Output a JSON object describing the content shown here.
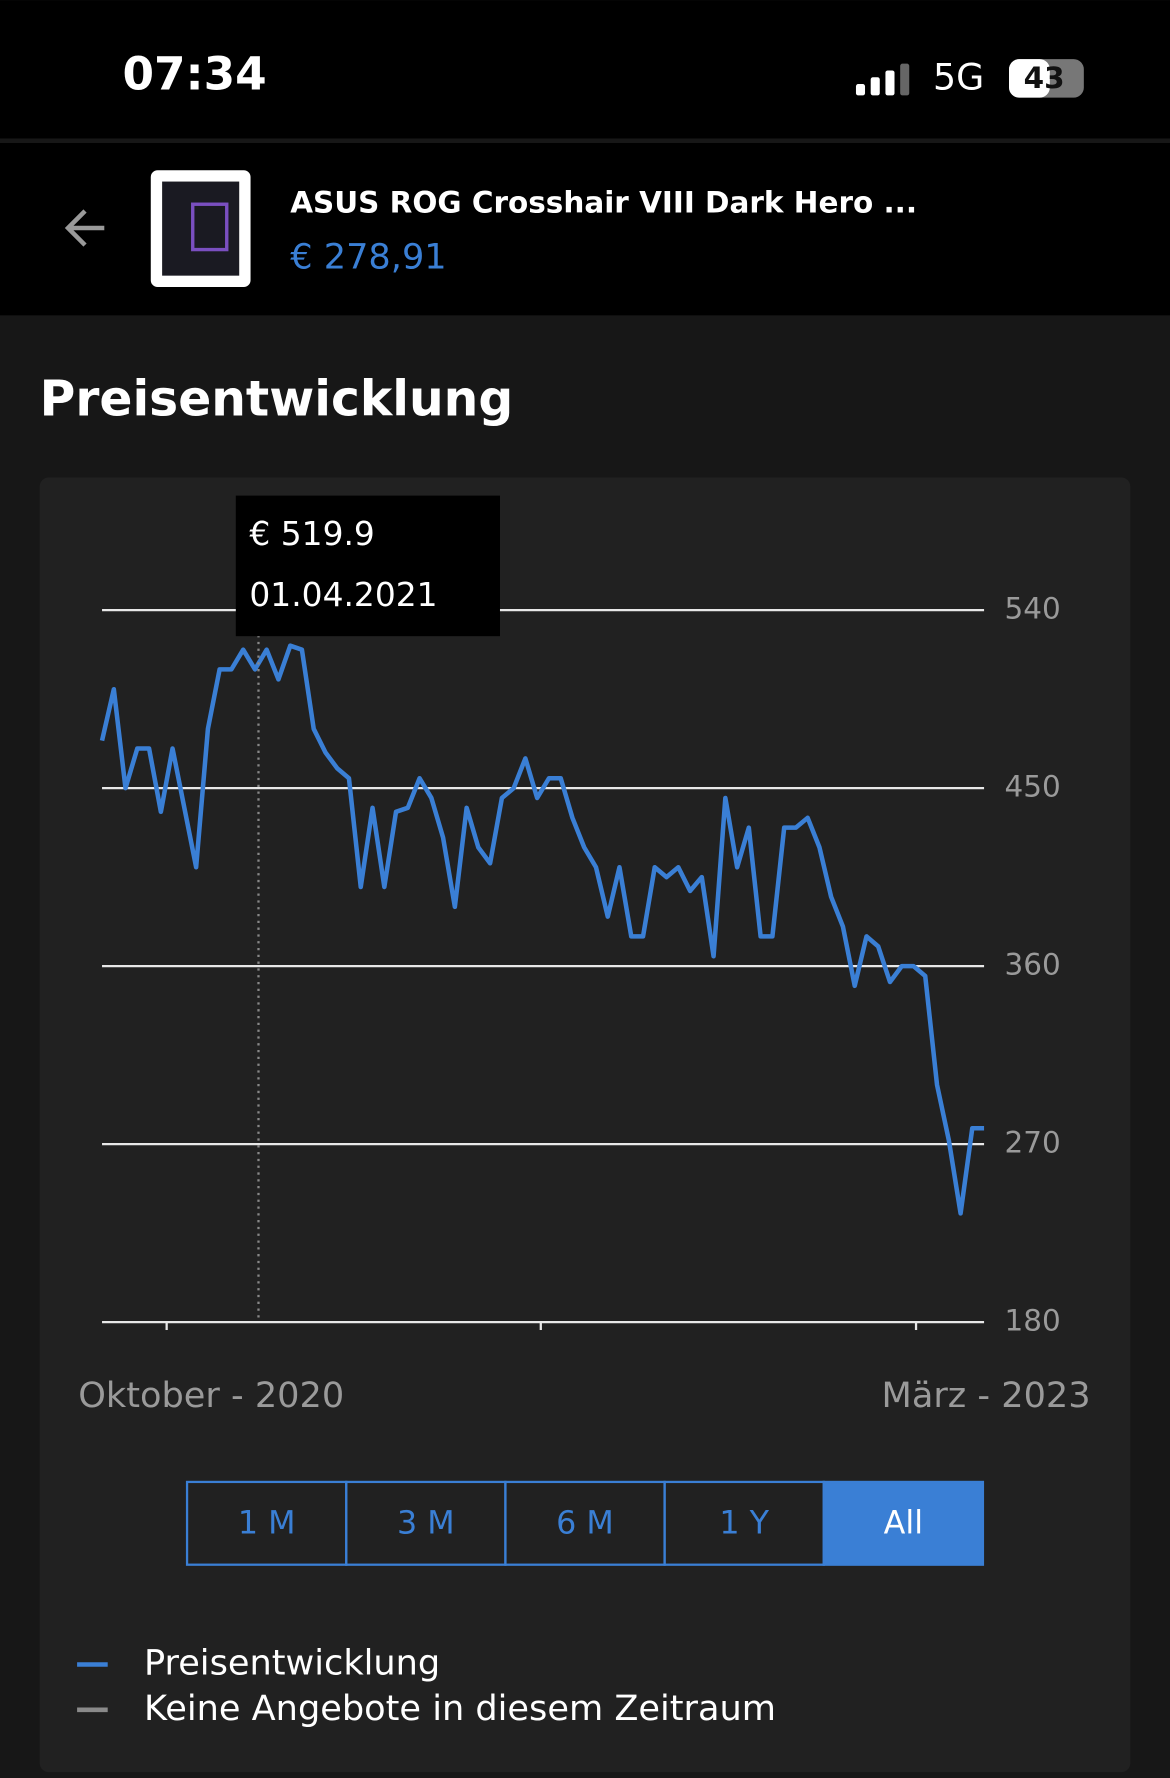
{
  "status_bar": {
    "time": "07:34",
    "network": "5G",
    "battery": "43"
  },
  "header": {
    "title": "ASUS ROG Crosshair VIII Dark Hero ...",
    "price": "€ 278,91"
  },
  "section_title": "Preisentwicklung",
  "chart_data": {
    "type": "line",
    "x_labels": [
      "Oktober - 2020",
      "März - 2023"
    ],
    "series": [
      {
        "name": "Preisentwicklung",
        "color": "#3a7fd5",
        "values": [
          474,
          500,
          450,
          470,
          470,
          438,
          470,
          440,
          410,
          480,
          510,
          510,
          520,
          510,
          520,
          505,
          522,
          520,
          480,
          468,
          460,
          455,
          400,
          440,
          400,
          438,
          440,
          455,
          445,
          425,
          390,
          440,
          420,
          412,
          445,
          450,
          465,
          445,
          455,
          455,
          435,
          420,
          410,
          385,
          410,
          375,
          375,
          410,
          405,
          410,
          398,
          405,
          365,
          445,
          410,
          430,
          375,
          375,
          430,
          430,
          435,
          420,
          395,
          380,
          350,
          375,
          370,
          352,
          360,
          360,
          355,
          300,
          272,
          235,
          278,
          278
        ]
      }
    ],
    "ylim": [
      180,
      540
    ],
    "yticks": [
      180,
      270,
      360,
      450,
      540
    ],
    "grid": true,
    "tooltip": {
      "value": "€ 519.9",
      "date": "01.04.2021"
    },
    "legend": [
      {
        "name": "Preisentwicklung",
        "color": "#3a7fd5"
      },
      {
        "name": "Keine Angebote in diesem Zeitraum",
        "color": "#8a8a8a"
      }
    ]
  },
  "range_buttons": {
    "labels": [
      "1 M",
      "3 M",
      "6 M",
      "1 Y",
      "All"
    ],
    "selected": 4
  }
}
